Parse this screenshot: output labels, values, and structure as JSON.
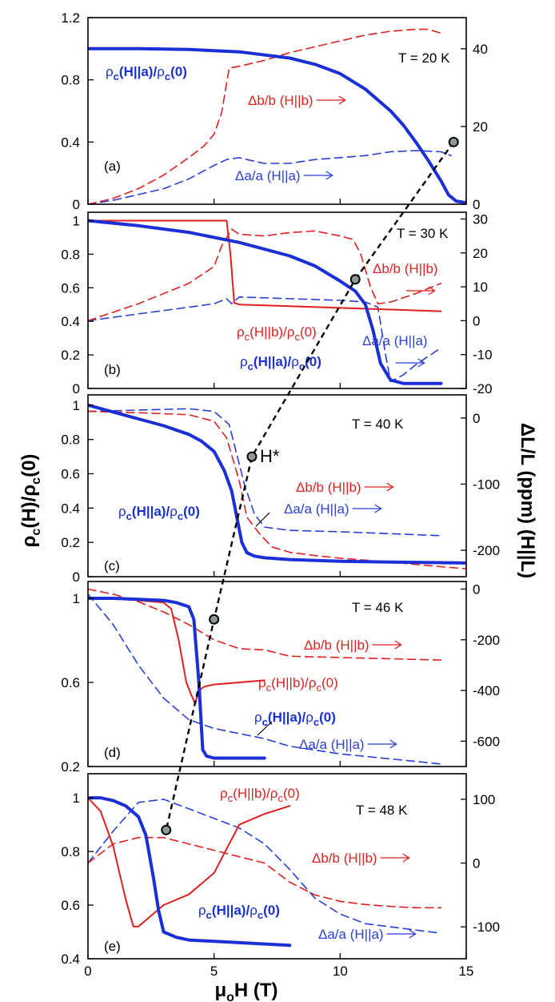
{
  "colors": {
    "rho_a": "#1a2fd6",
    "rho_b": "#e01f1f",
    "db": "#e01f1f",
    "da": "#2a3fd6",
    "hstar": "#000000",
    "marker_fill": "#8a9a95"
  },
  "axes": {
    "xlabel_main": "μ",
    "xlabel_sub": "o",
    "xlabel_rest": "H (T)",
    "ylabel_left_main": "ρ",
    "ylabel_left_sub": "c",
    "ylabel_left_rest": "(H)/ρ",
    "ylabel_left_sub2": "c",
    "ylabel_left_end": "(0)",
    "ylabel_right": "ΔL/L  (ppm) (H||L)",
    "x_ticks": [
      "0",
      "5",
      "10",
      "15"
    ],
    "xlim": [
      0,
      15
    ]
  },
  "chart_data": [
    {
      "type": "line",
      "panel": "(a)",
      "temperature": "T = 20 K",
      "ylim_left": [
        0,
        1.2
      ],
      "left_ticks": [
        "0",
        "0.4",
        "0.8",
        "1.2"
      ],
      "left_tick_values": [
        0,
        0.4,
        0.8,
        1.2
      ],
      "ylim_right": [
        0,
        48
      ],
      "right_ticks": [
        "0",
        "20",
        "40"
      ],
      "right_tick_values": [
        0,
        20,
        40
      ],
      "series": [
        {
          "key": "rho_a",
          "axis": "left",
          "dash": false,
          "width": 4,
          "x": [
            0,
            2,
            4,
            6,
            8,
            9,
            10,
            11,
            12,
            12.5,
            13,
            13.5,
            14,
            14.3,
            14.6,
            15
          ],
          "y": [
            1,
            1,
            0.995,
            0.98,
            0.94,
            0.9,
            0.84,
            0.74,
            0.6,
            0.51,
            0.4,
            0.28,
            0.15,
            0.06,
            0.02,
            0.01
          ]
        },
        {
          "key": "db",
          "axis": "right",
          "dash": true,
          "width": 1.6,
          "x": [
            0,
            1,
            2,
            3,
            4,
            4.6,
            5,
            5.3,
            5.6,
            6,
            7,
            8,
            9,
            10,
            11,
            12,
            13,
            13.5,
            14
          ],
          "y": [
            0,
            1.5,
            4,
            7.5,
            12,
            15,
            18,
            23.5,
            35,
            35.5,
            37,
            39,
            40.5,
            42,
            43.5,
            44.5,
            45,
            45,
            44
          ]
        },
        {
          "key": "da",
          "axis": "right",
          "dash": true,
          "width": 1.6,
          "x": [
            0,
            1,
            2,
            3,
            4,
            5,
            5.5,
            6,
            6.3,
            7,
            8,
            9,
            10,
            11,
            12,
            13,
            14,
            14.4
          ],
          "y": [
            0,
            1,
            2.5,
            4,
            6.5,
            10,
            11.5,
            12,
            11.5,
            10.5,
            10.5,
            11.5,
            12,
            12.5,
            13.5,
            13.8,
            13.5,
            12.5
          ]
        }
      ],
      "labels": [
        {
          "key": "rho_a",
          "text": "ρc(H||a)/ρc(0)"
        },
        {
          "key": "db",
          "text": "Δb/b (H||b)"
        },
        {
          "key": "da",
          "text": "Δa/a (H||a)"
        }
      ],
      "hstar": {
        "x": 14.5,
        "y": 0.4
      }
    },
    {
      "type": "line",
      "panel": "(b)",
      "temperature": "T = 30 K",
      "ylim_left": [
        0,
        1.05
      ],
      "left_ticks": [
        "0",
        "0.2",
        "0.4",
        "0.6",
        "0.8",
        "1"
      ],
      "left_tick_values": [
        0,
        0.2,
        0.4,
        0.6,
        0.8,
        1
      ],
      "ylim_right": [
        -20,
        32
      ],
      "right_ticks": [
        "-20",
        "-10",
        "0",
        "10",
        "20",
        "30"
      ],
      "right_tick_values": [
        -20,
        -10,
        0,
        10,
        20,
        30
      ],
      "series": [
        {
          "key": "rho_a",
          "axis": "left",
          "dash": false,
          "width": 4,
          "x": [
            0,
            2,
            4,
            6,
            8,
            9,
            10,
            10.6,
            11,
            11.3,
            11.6,
            12,
            12.5,
            13,
            14
          ],
          "y": [
            1,
            0.97,
            0.93,
            0.87,
            0.79,
            0.73,
            0.64,
            0.58,
            0.5,
            0.35,
            0.15,
            0.05,
            0.03,
            0.03,
            0.03
          ]
        },
        {
          "key": "rho_b",
          "axis": "left",
          "dash": false,
          "width": 2,
          "x": [
            0,
            2,
            4,
            5.5,
            5.65,
            5.8,
            6,
            8,
            10,
            12,
            14
          ],
          "y": [
            1,
            1,
            1,
            1,
            0.8,
            0.51,
            0.5,
            0.49,
            0.48,
            0.47,
            0.46
          ]
        },
        {
          "key": "db",
          "axis": "right",
          "dash": true,
          "width": 1.6,
          "x": [
            0,
            2,
            4,
            5,
            5.3,
            5.7,
            6,
            7,
            8,
            9,
            10,
            10.5,
            10.8,
            11.2,
            11.5,
            12,
            13,
            14
          ],
          "y": [
            0,
            5,
            11,
            16,
            22,
            27,
            25.5,
            25,
            26,
            26.5,
            25,
            24,
            20,
            10,
            5,
            5.5,
            8,
            11
          ]
        },
        {
          "key": "da",
          "axis": "right",
          "dash": true,
          "width": 1.6,
          "x": [
            0,
            2,
            4,
            5,
            5.5,
            5.7,
            6,
            8,
            10,
            11,
            11.5,
            11.8,
            12,
            12.5,
            13,
            14
          ],
          "y": [
            0,
            2,
            4,
            5,
            6.5,
            5,
            7,
            6.5,
            6,
            5.5,
            4,
            -10,
            -18,
            -16,
            -13,
            -8
          ]
        }
      ],
      "labels": [
        {
          "key": "rho_b",
          "text": "ρc(H||b)/ρc(0)"
        },
        {
          "key": "rho_a",
          "text": "ρc(H||a)/ρc(0)"
        },
        {
          "key": "db",
          "text": "Δb/b (H||b)"
        },
        {
          "key": "da",
          "text": "Δa/a (H||a)"
        }
      ],
      "hstar": {
        "x": 10.6,
        "y": 0.65
      }
    },
    {
      "type": "line",
      "panel": "(c)",
      "temperature": "T = 40 K",
      "ylim_left": [
        0,
        1.06
      ],
      "left_ticks": [
        "0",
        "0.2",
        "0.4",
        "0.6",
        "0.8",
        "1"
      ],
      "left_tick_values": [
        0,
        0.2,
        0.4,
        0.6,
        0.8,
        1
      ],
      "ylim_right": [
        -240,
        35
      ],
      "right_ticks": [
        "-200",
        "-100",
        "0"
      ],
      "right_tick_values": [
        -200,
        -100,
        0
      ],
      "series": [
        {
          "key": "rho_a",
          "axis": "left",
          "dash": false,
          "width": 4,
          "x": [
            0,
            1,
            2,
            3,
            4,
            4.5,
            5,
            5.4,
            5.7,
            5.9,
            6.1,
            6.3,
            6.6,
            7,
            8,
            10,
            12,
            15
          ],
          "y": [
            1,
            0.96,
            0.92,
            0.88,
            0.83,
            0.79,
            0.73,
            0.62,
            0.5,
            0.35,
            0.2,
            0.14,
            0.12,
            0.11,
            0.1,
            0.09,
            0.085,
            0.08
          ]
        },
        {
          "key": "db",
          "axis": "right",
          "dash": true,
          "width": 1.6,
          "x": [
            0,
            2,
            4,
            5,
            5.5,
            6,
            6.3,
            6.8,
            7.3,
            8,
            9,
            10,
            12,
            14,
            15
          ],
          "y": [
            10,
            8,
            5,
            -5,
            -30,
            -95,
            -150,
            -175,
            -195,
            -203,
            -208,
            -212,
            -218,
            -225,
            -228
          ]
        },
        {
          "key": "da",
          "axis": "right",
          "dash": true,
          "width": 1.6,
          "x": [
            0,
            2,
            4,
            5,
            5.6,
            6.2,
            6.6,
            7,
            8,
            10,
            12,
            14
          ],
          "y": [
            10,
            12,
            14,
            10,
            -10,
            -100,
            -145,
            -165,
            -170,
            -172,
            -175,
            -178
          ]
        }
      ],
      "labels": [
        {
          "key": "rho_a",
          "text": "ρc(H||a)/ρc(0)"
        },
        {
          "key": "db",
          "text": "Δb/b (H||b)"
        },
        {
          "key": "da",
          "text": "Δa/a (H||a)"
        }
      ],
      "hstar": {
        "x": 6.5,
        "y": 0.7,
        "text": "H*"
      }
    },
    {
      "type": "line",
      "panel": "(d)",
      "temperature": "T = 46 K",
      "ylim_left": [
        0.2,
        1.08
      ],
      "left_ticks": [
        "0.2",
        "0.6",
        "1"
      ],
      "left_tick_values": [
        0.2,
        0.6,
        1
      ],
      "ylim_right": [
        -700,
        30
      ],
      "right_ticks": [
        "-600",
        "-400",
        "-200",
        "0"
      ],
      "right_tick_values": [
        -600,
        -400,
        -200,
        0
      ],
      "series": [
        {
          "key": "rho_a",
          "axis": "left",
          "dash": false,
          "width": 4,
          "x": [
            0,
            1,
            2,
            3,
            3.5,
            4,
            4.2,
            4.4,
            4.55,
            4.7,
            5,
            6,
            7
          ],
          "y": [
            1,
            1,
            0.995,
            0.99,
            0.98,
            0.96,
            0.9,
            0.6,
            0.28,
            0.25,
            0.24,
            0.24,
            0.24
          ]
        },
        {
          "key": "rho_b",
          "axis": "left",
          "dash": false,
          "width": 2,
          "x": [
            0,
            1,
            2,
            3,
            3.3,
            3.6,
            3.9,
            4.1,
            4.25,
            4.4,
            4.6,
            5,
            6,
            7
          ],
          "y": [
            1,
            1,
            0.99,
            0.98,
            0.95,
            0.8,
            0.6,
            0.54,
            0.5,
            0.56,
            0.58,
            0.59,
            0.6,
            0.61
          ]
        },
        {
          "key": "db",
          "axis": "right",
          "dash": true,
          "width": 1.6,
          "x": [
            0,
            1,
            2,
            3,
            4,
            5,
            6,
            7,
            8,
            10,
            12,
            14
          ],
          "y": [
            0,
            -20,
            -50,
            -90,
            -140,
            -200,
            -235,
            -240,
            -265,
            -270,
            -275,
            -280
          ]
        },
        {
          "key": "da",
          "axis": "right",
          "dash": true,
          "width": 1.6,
          "x": [
            0,
            1,
            2,
            3,
            4,
            5,
            6,
            7,
            8,
            10,
            12,
            14
          ],
          "y": [
            -20,
            -140,
            -300,
            -430,
            -515,
            -550,
            -570,
            -590,
            -620,
            -650,
            -670,
            -690
          ]
        }
      ],
      "labels": [
        {
          "key": "db",
          "text": "Δb/b (H||b)"
        },
        {
          "key": "rho_b",
          "text": "ρc(H||b)/ρc(0)"
        },
        {
          "key": "rho_a",
          "text": "ρc(H||a)/ρc(0)"
        },
        {
          "key": "da",
          "text": "Δa/a (H||a)"
        }
      ],
      "hstar": {
        "x": 5,
        "y": 0.9
      }
    },
    {
      "type": "line",
      "panel": "(e)",
      "temperature": "T = 48 K",
      "ylim_left": [
        0.4,
        1.09
      ],
      "left_ticks": [
        "0.4",
        "0.6",
        "0.8",
        "1"
      ],
      "left_tick_values": [
        0.4,
        0.6,
        0.8,
        1
      ],
      "ylim_right": [
        -150,
        140
      ],
      "right_ticks": [
        "-100",
        "0",
        "100"
      ],
      "right_tick_values": [
        -100,
        0,
        100
      ],
      "series": [
        {
          "key": "rho_a",
          "axis": "left",
          "dash": false,
          "width": 4,
          "x": [
            0,
            0.5,
            1,
            1.5,
            2,
            2.3,
            2.6,
            2.8,
            3,
            3.5,
            4,
            6,
            8
          ],
          "y": [
            1,
            1,
            0.99,
            0.97,
            0.93,
            0.86,
            0.7,
            0.58,
            0.5,
            0.48,
            0.47,
            0.46,
            0.45
          ]
        },
        {
          "key": "rho_b",
          "axis": "left",
          "dash": false,
          "width": 2,
          "x": [
            0,
            0.5,
            1,
            1.5,
            1.8,
            2,
            2.5,
            3,
            4,
            5,
            5.5,
            6,
            7,
            8
          ],
          "y": [
            1,
            0.95,
            0.82,
            0.62,
            0.52,
            0.52,
            0.56,
            0.6,
            0.64,
            0.72,
            0.81,
            0.9,
            0.94,
            0.97
          ]
        },
        {
          "key": "db",
          "axis": "right",
          "dash": true,
          "width": 1.6,
          "x": [
            0,
            1,
            2,
            3,
            4,
            5,
            6,
            7,
            8,
            9,
            10,
            11,
            12,
            13,
            14
          ],
          "y": [
            0,
            30,
            40,
            40,
            30,
            20,
            10,
            0,
            -30,
            -50,
            -60,
            -65,
            -68,
            -70,
            -70
          ]
        },
        {
          "key": "da",
          "axis": "right",
          "dash": true,
          "width": 1.6,
          "x": [
            0,
            1,
            2,
            3,
            4,
            5,
            6,
            7,
            8,
            9,
            10,
            11,
            12,
            13,
            14
          ],
          "y": [
            0,
            50,
            95,
            100,
            85,
            70,
            55,
            30,
            -10,
            -55,
            -80,
            -95,
            -100,
            -105,
            -110
          ]
        }
      ],
      "labels": [
        {
          "key": "rho_b",
          "text": "ρc(H||b)/ρc(0)"
        },
        {
          "key": "db",
          "text": "Δb/b (H||b)"
        },
        {
          "key": "rho_a",
          "text": "ρc(H||a)/ρc(0)"
        },
        {
          "key": "da",
          "text": "Δa/a (H||a)"
        }
      ],
      "hstar": {
        "x": 3.1,
        "y": 0.88
      }
    }
  ]
}
